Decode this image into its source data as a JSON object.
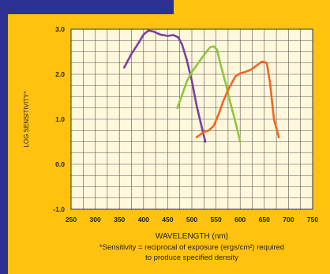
{
  "chart_data": {
    "type": "line",
    "title": "",
    "xlabel": "WAVELENGTH (nm)",
    "ylabel": "LOG SENSITIVITY*",
    "footnote_line1": "*Sensitivity = reciprocal of exposure (ergs/cm²) required",
    "footnote_line2": "to produce specified density",
    "xlim": [
      250,
      750
    ],
    "ylim": [
      -1.0,
      3.0
    ],
    "x_ticks": [
      250,
      300,
      350,
      400,
      450,
      500,
      550,
      600,
      650,
      700,
      750
    ],
    "x_tick_labels": [
      "250",
      "300",
      "350",
      "400",
      "450",
      "500",
      "550",
      "600",
      "650",
      "700",
      "750"
    ],
    "y_ticks": [
      -1.0,
      0.0,
      1.0,
      2.0,
      3.0
    ],
    "y_tick_labels": [
      "-1.0",
      "0.0",
      "1.0",
      "2.0",
      "3.0"
    ],
    "grid": true,
    "legend": "none",
    "series": [
      {
        "color": "#7B3FA0",
        "x": [
          360,
          375,
          390,
          400,
          410,
          420,
          435,
          450,
          462,
          472,
          480,
          490,
          500,
          510,
          520,
          528
        ],
        "y": [
          2.15,
          2.45,
          2.7,
          2.88,
          2.97,
          2.95,
          2.88,
          2.85,
          2.87,
          2.82,
          2.65,
          2.3,
          1.85,
          1.3,
          0.85,
          0.5
        ]
      },
      {
        "color": "#8DC63F",
        "x": [
          470,
          480,
          490,
          500,
          510,
          520,
          530,
          538,
          545,
          552,
          560,
          570,
          580,
          590,
          600
        ],
        "y": [
          1.25,
          1.55,
          1.85,
          2.05,
          2.2,
          2.35,
          2.5,
          2.6,
          2.62,
          2.55,
          2.2,
          1.8,
          1.35,
          0.95,
          0.5
        ]
      },
      {
        "color": "#F26522",
        "x": [
          510,
          525,
          535,
          545,
          555,
          565,
          575,
          590,
          600,
          610,
          622,
          635,
          645,
          655,
          662,
          670,
          680
        ],
        "y": [
          0.6,
          0.72,
          0.75,
          0.85,
          1.1,
          1.4,
          1.65,
          1.95,
          2.02,
          2.05,
          2.1,
          2.2,
          2.28,
          2.25,
          1.8,
          1.0,
          0.6
        ]
      }
    ]
  }
}
